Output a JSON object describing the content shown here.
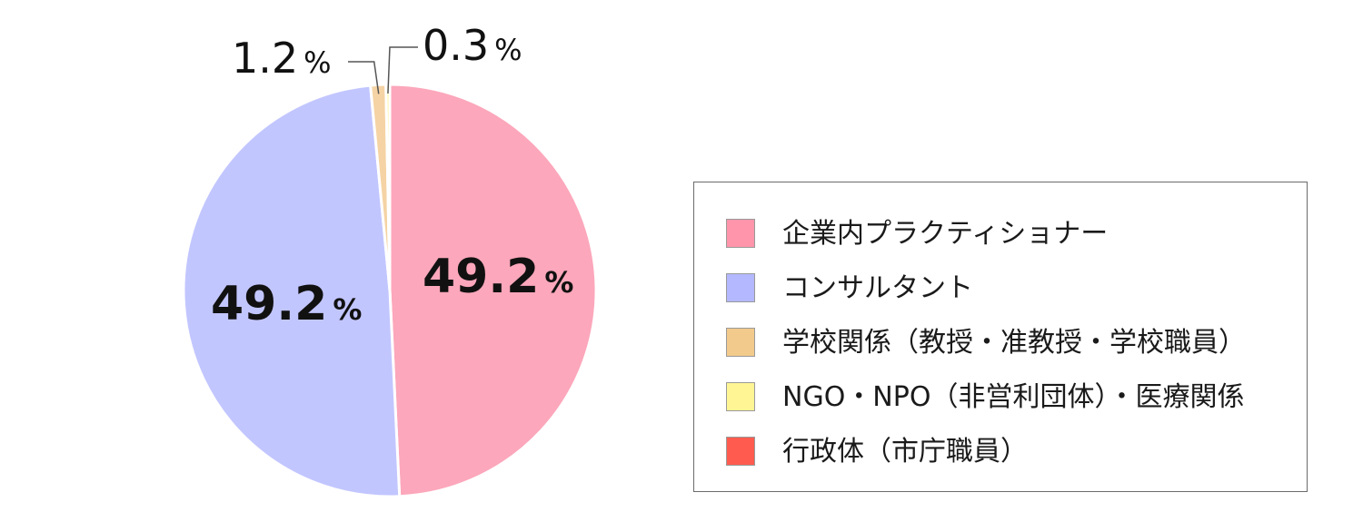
{
  "chart_data": {
    "type": "pie",
    "title": "",
    "series": [
      {
        "name": "企業内プラクティショナー",
        "value": 49.2,
        "label": "49.2",
        "unit": "%",
        "color": "#fca7bb",
        "legend_color": "#fe95ab"
      },
      {
        "name": "コンサルタント",
        "value": 49.2,
        "label": "49.2",
        "unit": "%",
        "color": "#c2c6ff",
        "legend_color": "#b4b8ff"
      },
      {
        "name": "学校関係（教授・准教授・学校職員）",
        "value": 1.2,
        "label": "1.2",
        "unit": "%",
        "color": "#f5d3a4",
        "legend_color": "#f2ca8b"
      },
      {
        "name": "NGO・NPO（非営利団体）・医療関係",
        "value": 0.3,
        "label": "0.3",
        "unit": "%",
        "color": "#fff59d",
        "legend_color": "#fff594"
      },
      {
        "name": "行政体（市庁職員）",
        "value": 0.0,
        "label": "",
        "unit": "",
        "color": "#ff5c4f",
        "legend_color": "#ff5c4f"
      }
    ],
    "legend_position": "right"
  }
}
